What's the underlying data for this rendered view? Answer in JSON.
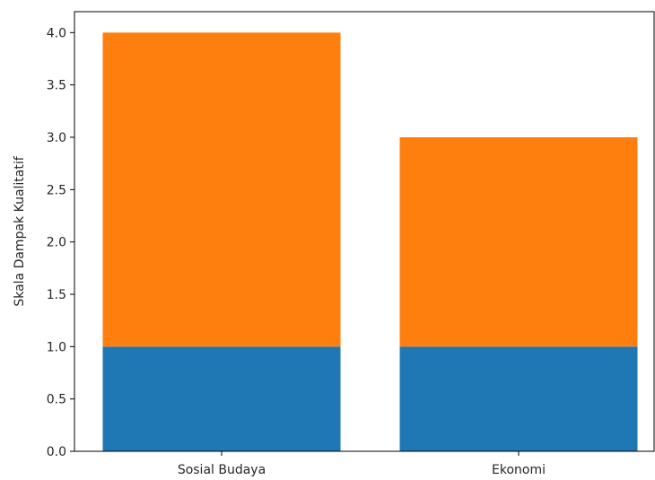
{
  "chart_data": {
    "type": "bar",
    "stacked": true,
    "categories": [
      "Sosial Budaya",
      "Ekonomi"
    ],
    "series": [
      {
        "values": [
          1.0,
          1.0
        ],
        "color": "#1f77b4"
      },
      {
        "values": [
          3.0,
          2.0
        ],
        "color": "#ff7f0e"
      }
    ],
    "ylabel": "Skala Dampak Kualitatif",
    "xlabel": "",
    "title": "",
    "ylim": [
      0,
      4.2
    ],
    "yticks": [
      "0.0",
      "0.5",
      "1.0",
      "1.5",
      "2.0",
      "2.5",
      "3.0",
      "3.5",
      "4.0"
    ],
    "grid": false,
    "legend": "none"
  }
}
